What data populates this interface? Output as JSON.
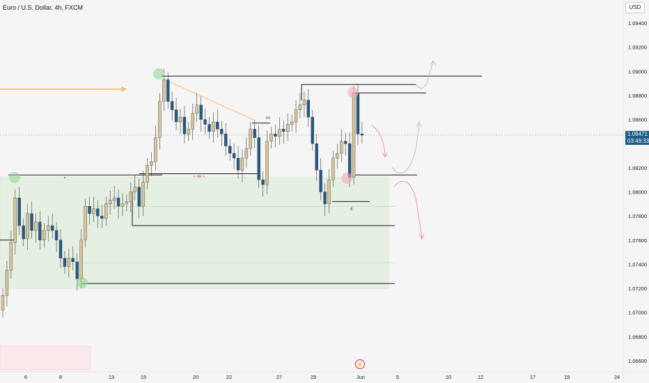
{
  "header": {
    "symbol": "Euro / U.S. Dollar, 4h, FXCM",
    "currency_button": "USD"
  },
  "price_tag": {
    "price": "1.08471",
    "countdown": "03:49:33"
  },
  "labels": {
    "hh_4h_a": "4H",
    "hh_4h_b": "4H",
    "marker_e": "£",
    "clock_icon": "lightning-clock-icon"
  },
  "colors": {
    "up_candle": "#d7c49a",
    "down_candle": "#265a85",
    "zone_fill": "#e6f1e3",
    "orange_line": "#f5a623"
  },
  "chart_data": {
    "type": "candlestick",
    "symbol": "EURUSD",
    "timeframe": "4h",
    "ylim": [
      1.0652,
      1.0952
    ],
    "y_ticks": [
      "1.09400",
      "1.09200",
      "1.09000",
      "1.08800",
      "1.08600",
      "1.08200",
      "1.08000",
      "1.07800",
      "1.07600",
      "1.07400",
      "1.07200",
      "1.07000",
      "1.06800",
      "1.06600"
    ],
    "x_ticks": [
      "6",
      "8",
      "13",
      "15",
      "20",
      "22",
      "27",
      "29",
      "Jun",
      "5",
      "10",
      "12",
      "17",
      "19",
      "24"
    ],
    "last_price": 1.08471,
    "ohlc_close_path": [
      1.0714,
      1.0735,
      1.0758,
      1.0795,
      1.0772,
      1.0761,
      1.0782,
      1.0768,
      1.0775,
      1.076,
      1.0768,
      1.0772,
      1.0768,
      1.076,
      1.0745,
      1.0738,
      1.0745,
      1.0742,
      1.0728,
      1.076,
      1.0788,
      1.0782,
      1.0786,
      1.078,
      1.0778,
      1.079,
      1.0793,
      1.0795,
      1.0788,
      1.079,
      1.0792,
      1.08,
      1.0804,
      1.0788,
      1.0808,
      1.0822,
      1.0825,
      1.0845,
      1.0875,
      1.0893,
      1.0875,
      1.0868,
      1.0858,
      1.0862,
      1.0848,
      1.0852,
      1.0865,
      1.0872,
      1.086,
      1.0856,
      1.085,
      1.0858,
      1.0852,
      1.0848,
      1.0838,
      1.0832,
      1.0828,
      1.0818,
      1.0828,
      1.0836,
      1.0852,
      1.0845,
      1.081,
      1.0806,
      1.0842,
      1.0848,
      1.0846,
      1.0852,
      1.085,
      1.0856,
      1.0858,
      1.0868,
      1.0872,
      1.0876,
      1.0862,
      1.084,
      1.0818,
      1.08,
      1.079,
      1.081,
      1.0828,
      1.0832,
      1.0842,
      1.084,
      1.0812,
      1.0882,
      1.0848,
      1.0847
    ]
  }
}
